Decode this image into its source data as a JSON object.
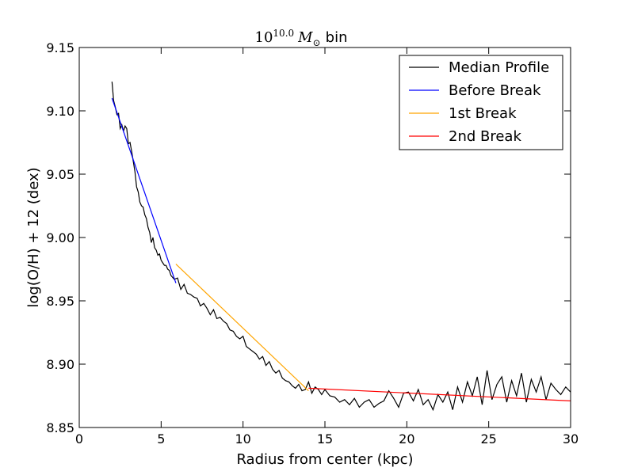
{
  "chart_data": {
    "type": "line",
    "title": {
      "base": "10",
      "exponent": "10.0",
      "symbol": "M",
      "subscript": "⊙",
      "suffix": "bin"
    },
    "xlabel": "Radius from center (kpc)",
    "ylabel": "log(O/H) + 12 (dex)",
    "xlim": [
      0,
      30
    ],
    "ylim": [
      8.85,
      9.15
    ],
    "xticks": [
      0,
      5,
      10,
      15,
      20,
      25,
      30
    ],
    "yticks": [
      8.85,
      8.9,
      8.95,
      9.0,
      9.05,
      9.1,
      9.15
    ],
    "xtick_labels": [
      "0",
      "5",
      "10",
      "15",
      "20",
      "25",
      "30"
    ],
    "ytick_labels": [
      "8.85",
      "8.90",
      "8.95",
      "9.00",
      "9.05",
      "9.10",
      "9.15"
    ],
    "grid": false,
    "legend_position": "top-right",
    "series": [
      {
        "name": "Median Profile",
        "color": "#000000",
        "x": [
          2.0,
          2.1,
          2.2,
          2.3,
          2.4,
          2.5,
          2.6,
          2.7,
          2.8,
          2.9,
          3.0,
          3.1,
          3.2,
          3.3,
          3.4,
          3.5,
          3.6,
          3.7,
          3.8,
          3.9,
          4.0,
          4.1,
          4.2,
          4.3,
          4.4,
          4.5,
          4.6,
          4.7,
          4.8,
          4.9,
          5.0,
          5.1,
          5.2,
          5.3,
          5.4,
          5.5,
          5.6,
          5.8,
          6.0,
          6.2,
          6.4,
          6.6,
          6.8,
          7.0,
          7.2,
          7.4,
          7.6,
          7.8,
          8.0,
          8.2,
          8.4,
          8.6,
          8.8,
          9.0,
          9.2,
          9.4,
          9.6,
          9.8,
          10.0,
          10.2,
          10.4,
          10.6,
          10.8,
          11.0,
          11.2,
          11.4,
          11.6,
          11.8,
          12.0,
          12.2,
          12.4,
          12.6,
          12.8,
          13.0,
          13.2,
          13.4,
          13.6,
          13.8,
          14.0,
          14.2,
          14.4,
          14.6,
          14.8,
          15.0,
          15.3,
          15.6,
          15.9,
          16.2,
          16.5,
          16.8,
          17.1,
          17.4,
          17.7,
          18.0,
          18.3,
          18.6,
          18.9,
          19.2,
          19.5,
          19.8,
          20.1,
          20.4,
          20.7,
          21.0,
          21.3,
          21.6,
          21.9,
          22.2,
          22.5,
          22.8,
          23.1,
          23.4,
          23.7,
          24.0,
          24.3,
          24.6,
          24.9,
          25.2,
          25.5,
          25.8,
          26.1,
          26.4,
          26.7,
          27.0,
          27.3,
          27.6,
          27.9,
          28.2,
          28.5,
          28.8,
          29.1,
          29.4,
          29.7,
          30.0
        ],
        "y": [
          9.123,
          9.108,
          9.103,
          9.097,
          9.098,
          9.086,
          9.089,
          9.084,
          9.088,
          9.086,
          9.074,
          9.075,
          9.068,
          9.06,
          9.052,
          9.04,
          9.036,
          9.028,
          9.025,
          9.024,
          9.018,
          9.015,
          9.008,
          9.004,
          8.996,
          9.0,
          8.992,
          8.99,
          8.986,
          8.987,
          8.982,
          8.98,
          8.978,
          8.978,
          8.975,
          8.974,
          8.97,
          8.967,
          8.968,
          8.959,
          8.963,
          8.956,
          8.955,
          8.953,
          8.952,
          8.946,
          8.948,
          8.944,
          8.939,
          8.943,
          8.936,
          8.937,
          8.934,
          8.932,
          8.927,
          8.926,
          8.922,
          8.92,
          8.922,
          8.914,
          8.912,
          8.91,
          8.908,
          8.904,
          8.906,
          8.899,
          8.902,
          8.896,
          8.893,
          8.895,
          8.889,
          8.887,
          8.886,
          8.883,
          8.881,
          8.884,
          8.879,
          8.88,
          8.886,
          8.877,
          8.882,
          8.88,
          8.876,
          8.88,
          8.875,
          8.874,
          8.87,
          8.872,
          8.868,
          8.873,
          8.866,
          8.87,
          8.872,
          8.866,
          8.869,
          8.871,
          8.879,
          8.873,
          8.866,
          8.877,
          8.878,
          8.871,
          8.88,
          8.868,
          8.872,
          8.864,
          8.876,
          8.87,
          8.878,
          8.864,
          8.882,
          8.87,
          8.886,
          8.875,
          8.89,
          8.868,
          8.895,
          8.872,
          8.884,
          8.89,
          8.87,
          8.887,
          8.875,
          8.893,
          8.87,
          8.888,
          8.878,
          8.89,
          8.872,
          8.885,
          8.88,
          8.876,
          8.882,
          8.878
        ]
      },
      {
        "name": "Before Break",
        "color": "#0000ff",
        "x": [
          2.0,
          5.9
        ],
        "y": [
          9.11,
          8.964
        ]
      },
      {
        "name": "1st Break",
        "color": "#ffa500",
        "x": [
          5.9,
          14.0
        ],
        "y": [
          8.979,
          8.879
        ]
      },
      {
        "name": "2nd Break",
        "color": "#ff0000",
        "x": [
          14.0,
          30.0
        ],
        "y": [
          8.881,
          8.871
        ]
      }
    ]
  }
}
